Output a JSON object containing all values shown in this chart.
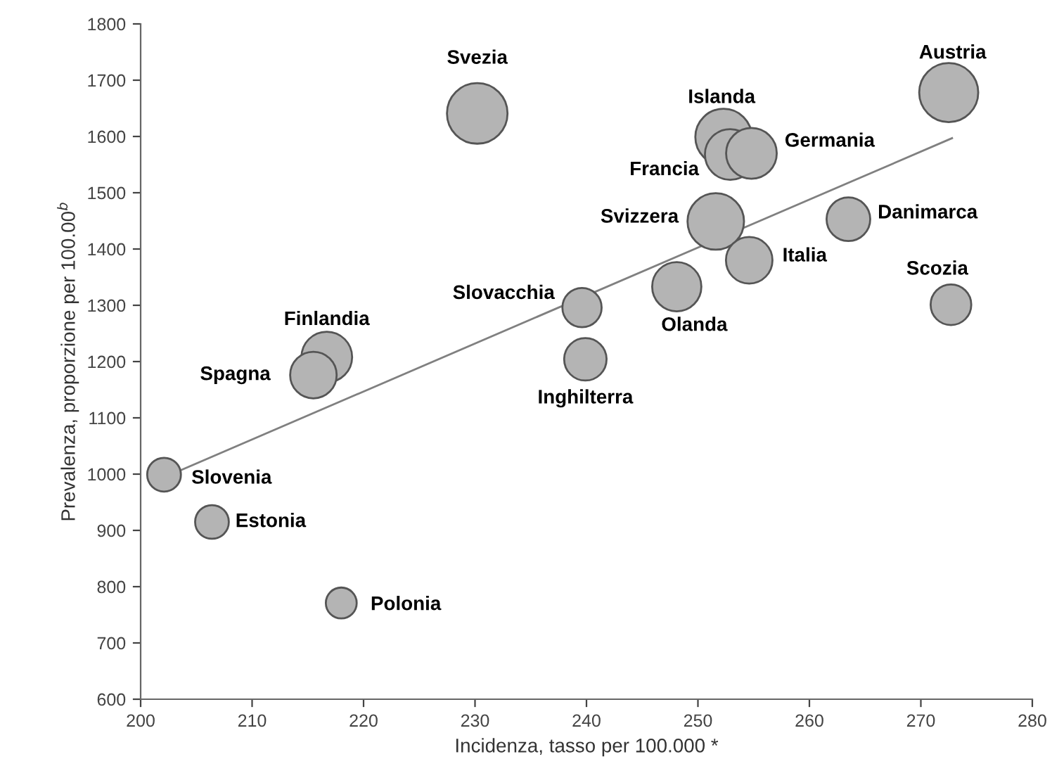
{
  "chart_data": {
    "type": "bubble",
    "xlabel": "Incidenza, tasso per 100.000 *",
    "ylabel": "Prevalenza, proporzione per 100.00$^{b}$",
    "xlim": [
      200,
      280
    ],
    "xticks": [
      200,
      210,
      220,
      230,
      240,
      250,
      260,
      270,
      280
    ],
    "ylim": [
      600,
      1800
    ],
    "yticks": [
      600,
      700,
      800,
      900,
      1000,
      1100,
      1200,
      1300,
      1400,
      1500,
      1600,
      1700,
      1800
    ],
    "grid": false,
    "legend": false,
    "series": [
      {
        "color": "#b4b4b4",
        "x": [
          230.2,
          216.7,
          215.5,
          202.1,
          206.4,
          218.0,
          272.5,
          252.3,
          252.9,
          254.8,
          251.6,
          263.5,
          254.6,
          272.7,
          248.1,
          239.6,
          239.9
        ],
        "values": [
          1641,
          1208,
          1176,
          999,
          915,
          771,
          1678,
          1599,
          1568,
          1570,
          1449,
          1453,
          1380,
          1301,
          1333,
          1296,
          1204
        ],
        "sizes": [
          1,
          0.7,
          0.59,
          0.31,
          0.31,
          0.26,
          0.95,
          0.87,
          0.7,
          0.7,
          0.87,
          0.52,
          0.59,
          0.45,
          0.66,
          0.42,
          0.49
        ]
      },
      {
        "type": "line",
        "color": "#808080",
        "x": [
          202.2,
          272.8
        ],
        "values": [
          995,
          1597
        ]
      }
    ],
    "annotations": [
      {
        "text": "Svezia",
        "x": 230.2,
        "y": 1641
      },
      {
        "text": "Finlandia",
        "x": 216.7,
        "y": 1208
      },
      {
        "text": "Spagna",
        "x": 215.5,
        "y": 1176
      },
      {
        "text": "Slovenia",
        "x": 202.1,
        "y": 999
      },
      {
        "text": "Estonia",
        "x": 206.4,
        "y": 915
      },
      {
        "text": "Polonia",
        "x": 218.0,
        "y": 771
      },
      {
        "text": "Austria",
        "x": 272.5,
        "y": 1678
      },
      {
        "text": "Islanda",
        "x": 252.3,
        "y": 1599
      },
      {
        "text": "Francia",
        "x": 252.9,
        "y": 1568
      },
      {
        "text": "Germania",
        "x": 254.8,
        "y": 1570
      },
      {
        "text": "Svizzera",
        "x": 251.6,
        "y": 1449
      },
      {
        "text": "Danimarca",
        "x": 263.5,
        "y": 1453
      },
      {
        "text": "Italia",
        "x": 254.6,
        "y": 1380
      },
      {
        "text": "Scozia",
        "x": 272.7,
        "y": 1301
      },
      {
        "text": "Olanda",
        "x": 248.1,
        "y": 1333
      },
      {
        "text": "Slovacchia",
        "x": 239.6,
        "y": 1296
      },
      {
        "text": "Inghilterra",
        "x": 239.9,
        "y": 1204
      }
    ]
  }
}
